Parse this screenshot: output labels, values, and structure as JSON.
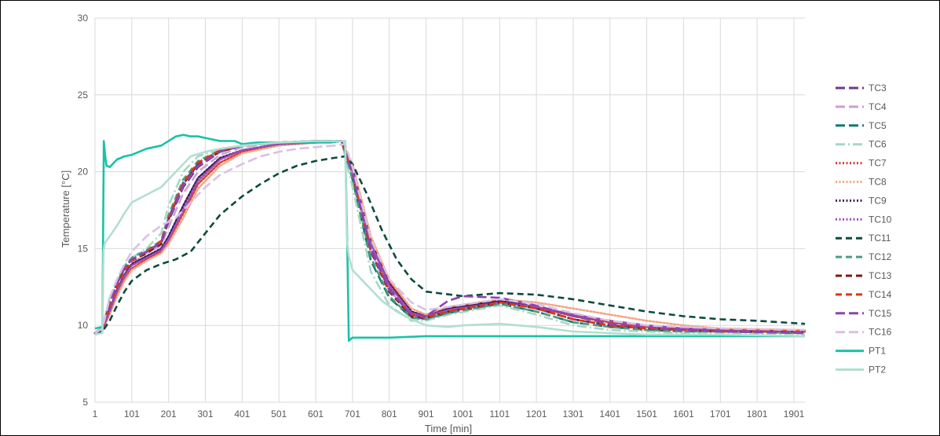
{
  "chart_data": {
    "type": "line",
    "xlabel": "Time [min]",
    "ylabel": "Temperature [°C]",
    "xlim": [
      1,
      1931
    ],
    "ylim": [
      5,
      30
    ],
    "xticks": [
      1,
      101,
      201,
      301,
      401,
      501,
      601,
      701,
      801,
      901,
      1001,
      1101,
      1201,
      1301,
      1401,
      1501,
      1601,
      1701,
      1801,
      1901
    ],
    "yticks": [
      5,
      10,
      15,
      20,
      25,
      30
    ],
    "grid": "vertical and horizontal",
    "legend": "right",
    "series": [
      {
        "name": "TC3",
        "color": "#6b3a8c",
        "style": "long-dash",
        "x": [
          1,
          21,
          41,
          61,
          81,
          101,
          141,
          181,
          201,
          241,
          281,
          341,
          401,
          501,
          601,
          671,
          701,
          751,
          801,
          861,
          901,
          961,
          1101,
          1201,
          1301,
          1401,
          1501,
          1601,
          1701,
          1931
        ],
        "y": [
          9.5,
          9.8,
          11.5,
          12.8,
          13.8,
          14.3,
          14.8,
          15.3,
          16.8,
          19.0,
          20.3,
          21.3,
          21.7,
          21.9,
          22.0,
          22.0,
          20.0,
          15.0,
          12.4,
          10.6,
          10.4,
          10.9,
          11.6,
          11.1,
          10.4,
          10.0,
          9.8,
          9.7,
          9.6,
          9.6
        ]
      },
      {
        "name": "TC4",
        "color": "#c9a0d6",
        "style": "long-dash",
        "x": [
          1,
          21,
          41,
          61,
          81,
          101,
          141,
          181,
          201,
          241,
          281,
          341,
          401,
          501,
          601,
          671,
          701,
          751,
          801,
          861,
          901,
          961,
          1101,
          1201,
          1301,
          1401,
          1501,
          1601,
          1701,
          1931
        ],
        "y": [
          9.5,
          9.8,
          11.0,
          12.3,
          13.3,
          14.0,
          14.7,
          15.2,
          16.4,
          18.6,
          20.0,
          21.1,
          21.6,
          21.9,
          22.0,
          22.0,
          19.8,
          14.8,
          12.3,
          10.7,
          10.5,
          11.0,
          11.5,
          11.2,
          10.6,
          10.2,
          9.9,
          9.8,
          9.7,
          9.6
        ]
      },
      {
        "name": "TC5",
        "color": "#0f7b6c",
        "style": "long-dash",
        "x": [
          1,
          21,
          41,
          61,
          81,
          101,
          141,
          181,
          201,
          241,
          281,
          341,
          401,
          501,
          601,
          671,
          701,
          751,
          801,
          861,
          901,
          961,
          1101,
          1201,
          1301,
          1401,
          1501,
          1601,
          1701,
          1931
        ],
        "y": [
          9.5,
          9.8,
          11.4,
          12.7,
          13.7,
          14.3,
          14.8,
          15.4,
          17.0,
          19.3,
          20.5,
          21.4,
          21.7,
          21.9,
          22.0,
          22.0,
          19.5,
          14.2,
          11.8,
          10.5,
          10.4,
          10.8,
          11.4,
          10.9,
          10.2,
          9.9,
          9.7,
          9.6,
          9.6,
          9.5
        ]
      },
      {
        "name": "TC6",
        "color": "#a8d5c4",
        "style": "dash-dot",
        "x": [
          1,
          21,
          41,
          61,
          81,
          101,
          141,
          181,
          201,
          241,
          281,
          341,
          401,
          501,
          601,
          671,
          701,
          751,
          801,
          861,
          901,
          961,
          1101,
          1201,
          1301,
          1401,
          1501,
          1601,
          1701,
          1931
        ],
        "y": [
          9.5,
          9.9,
          11.8,
          13.0,
          13.9,
          14.4,
          15.0,
          16.0,
          17.8,
          20.0,
          21.0,
          21.5,
          21.7,
          21.9,
          22.0,
          22.0,
          19.0,
          13.5,
          11.3,
          10.3,
          10.3,
          10.7,
          11.3,
          10.7,
          10.0,
          9.7,
          9.6,
          9.5,
          9.5,
          9.4
        ]
      },
      {
        "name": "TC7",
        "color": "#d93a2b",
        "style": "dotted",
        "x": [
          1,
          21,
          41,
          61,
          81,
          101,
          141,
          181,
          201,
          241,
          281,
          341,
          401,
          501,
          601,
          671,
          701,
          751,
          801,
          861,
          901,
          961,
          1101,
          1201,
          1301,
          1401,
          1501,
          1601,
          1701,
          1931
        ],
        "y": [
          9.5,
          9.7,
          10.8,
          12.0,
          13.0,
          13.7,
          14.3,
          14.8,
          15.5,
          17.3,
          19.2,
          20.6,
          21.3,
          21.8,
          21.9,
          22.0,
          20.3,
          15.5,
          12.8,
          10.9,
          10.6,
          11.1,
          11.6,
          11.2,
          10.6,
          10.2,
          9.9,
          9.8,
          9.7,
          9.6
        ]
      },
      {
        "name": "TC8",
        "color": "#f4a582",
        "style": "dotted",
        "x": [
          1,
          21,
          41,
          61,
          81,
          101,
          141,
          181,
          201,
          241,
          281,
          341,
          401,
          501,
          601,
          671,
          701,
          751,
          801,
          861,
          901,
          961,
          1101,
          1201,
          1301,
          1401,
          1501,
          1601,
          1701,
          1931
        ],
        "y": [
          9.5,
          9.7,
          10.7,
          11.9,
          12.9,
          13.6,
          14.2,
          14.7,
          15.3,
          17.0,
          18.9,
          20.4,
          21.2,
          21.7,
          21.9,
          22.0,
          20.5,
          15.8,
          13.0,
          11.1,
          10.7,
          11.2,
          11.7,
          11.5,
          11.1,
          10.7,
          10.3,
          10.0,
          9.8,
          9.7
        ]
      },
      {
        "name": "TC9",
        "color": "#3d1c5c",
        "style": "dotted",
        "x": [
          1,
          21,
          41,
          61,
          81,
          101,
          141,
          181,
          201,
          241,
          281,
          341,
          401,
          501,
          601,
          671,
          701,
          751,
          801,
          861,
          901,
          961,
          1101,
          1201,
          1301,
          1401,
          1501,
          1601,
          1701,
          1931
        ],
        "y": [
          9.5,
          9.7,
          11.0,
          12.3,
          13.3,
          14.0,
          14.5,
          15.0,
          15.8,
          17.8,
          19.6,
          20.9,
          21.4,
          21.8,
          21.9,
          22.0,
          20.2,
          15.4,
          12.7,
          10.9,
          10.6,
          11.1,
          11.6,
          11.2,
          10.7,
          10.3,
          10.0,
          9.8,
          9.7,
          9.6
        ]
      },
      {
        "name": "TC10",
        "color": "#9b4fb8",
        "style": "dotted",
        "x": [
          1,
          21,
          41,
          61,
          81,
          101,
          141,
          181,
          201,
          241,
          281,
          341,
          401,
          501,
          601,
          671,
          701,
          751,
          801,
          861,
          901,
          961,
          1101,
          1201,
          1301,
          1401,
          1501,
          1601,
          1701,
          1931
        ],
        "y": [
          9.5,
          9.7,
          10.9,
          12.2,
          13.2,
          13.9,
          14.4,
          14.9,
          15.6,
          17.5,
          19.4,
          20.8,
          21.4,
          21.8,
          21.9,
          22.0,
          20.1,
          15.3,
          12.6,
          10.8,
          10.6,
          11.0,
          11.5,
          11.2,
          10.7,
          10.3,
          10.0,
          9.8,
          9.7,
          9.6
        ]
      },
      {
        "name": "TC11",
        "color": "#0d4a3e",
        "style": "dashed",
        "x": [
          1,
          21,
          41,
          61,
          81,
          101,
          141,
          181,
          221,
          261,
          301,
          341,
          401,
          451,
          501,
          551,
          601,
          651,
          681,
          701,
          741,
          781,
          821,
          861,
          901,
          1001,
          1101,
          1201,
          1301,
          1401,
          1501,
          1601,
          1701,
          1801,
          1931
        ],
        "y": [
          9.5,
          9.6,
          10.3,
          11.3,
          12.2,
          12.9,
          13.6,
          14.0,
          14.3,
          14.8,
          16.0,
          17.2,
          18.4,
          19.2,
          19.9,
          20.4,
          20.7,
          20.9,
          21.0,
          20.5,
          18.5,
          16.2,
          14.3,
          13.0,
          12.2,
          11.9,
          12.1,
          12.0,
          11.7,
          11.3,
          10.9,
          10.6,
          10.4,
          10.3,
          10.1
        ]
      },
      {
        "name": "TC12",
        "color": "#4e9c82",
        "style": "dashed",
        "x": [
          1,
          21,
          41,
          61,
          81,
          101,
          141,
          181,
          201,
          241,
          281,
          341,
          401,
          501,
          601,
          671,
          701,
          751,
          801,
          861,
          901,
          961,
          1101,
          1201,
          1301,
          1401,
          1501,
          1601,
          1701,
          1931
        ],
        "y": [
          9.5,
          9.8,
          11.5,
          12.8,
          13.8,
          14.4,
          14.9,
          15.5,
          17.2,
          19.5,
          20.7,
          21.4,
          21.7,
          21.9,
          22.0,
          22.0,
          19.6,
          14.4,
          11.9,
          10.5,
          10.4,
          10.8,
          11.4,
          10.9,
          10.2,
          9.9,
          9.7,
          9.6,
          9.6,
          9.5
        ]
      },
      {
        "name": "TC13",
        "color": "#7a1a10",
        "style": "dashed",
        "x": [
          1,
          21,
          41,
          61,
          81,
          101,
          141,
          181,
          201,
          241,
          281,
          341,
          401,
          501,
          601,
          671,
          701,
          751,
          801,
          861,
          901,
          961,
          1101,
          1201,
          1301,
          1401,
          1501,
          1601,
          1701,
          1931
        ],
        "y": [
          9.5,
          9.8,
          11.3,
          12.6,
          13.6,
          14.2,
          14.7,
          15.3,
          16.9,
          19.2,
          20.5,
          21.3,
          21.7,
          21.9,
          22.0,
          22.0,
          19.9,
          14.8,
          12.2,
          10.6,
          10.5,
          10.9,
          11.5,
          11.1,
          10.4,
          10.0,
          9.8,
          9.7,
          9.6,
          9.6
        ]
      },
      {
        "name": "TC14",
        "color": "#d9381e",
        "style": "dashed",
        "x": [
          1,
          21,
          41,
          61,
          81,
          101,
          141,
          181,
          201,
          241,
          281,
          341,
          401,
          501,
          601,
          671,
          701,
          751,
          801,
          861,
          901,
          961,
          1101,
          1201,
          1301,
          1401,
          1501,
          1601,
          1701,
          1931
        ],
        "y": [
          9.5,
          9.8,
          11.2,
          12.5,
          13.5,
          14.2,
          14.8,
          15.5,
          17.0,
          19.3,
          20.6,
          21.4,
          21.7,
          21.9,
          22.0,
          22.0,
          19.9,
          14.9,
          12.3,
          10.7,
          10.5,
          10.9,
          11.5,
          11.1,
          10.4,
          10.0,
          9.8,
          9.7,
          9.6,
          9.6
        ]
      },
      {
        "name": "TC15",
        "color": "#8e44ad",
        "style": "long-dash",
        "x": [
          1,
          21,
          41,
          61,
          81,
          101,
          141,
          181,
          201,
          241,
          281,
          341,
          401,
          501,
          601,
          671,
          701,
          751,
          801,
          861,
          901,
          961,
          1001,
          1101,
          1201,
          1301,
          1401,
          1501,
          1601,
          1701,
          1931
        ],
        "y": [
          9.5,
          9.8,
          11.4,
          12.7,
          13.7,
          14.3,
          14.8,
          15.4,
          16.9,
          19.1,
          20.4,
          21.3,
          21.7,
          21.9,
          22.0,
          22.0,
          19.9,
          14.9,
          12.3,
          10.7,
          10.6,
          11.6,
          11.9,
          11.8,
          11.3,
          10.6,
          10.1,
          9.9,
          9.7,
          9.6,
          9.5
        ]
      },
      {
        "name": "TC16",
        "color": "#dcbfe5",
        "style": "long-dash",
        "x": [
          1,
          21,
          41,
          61,
          81,
          101,
          141,
          181,
          221,
          261,
          301,
          341,
          401,
          451,
          501,
          551,
          601,
          651,
          681,
          701,
          751,
          801,
          861,
          901,
          961,
          1101,
          1201,
          1301,
          1401,
          1501,
          1601,
          1701,
          1931
        ],
        "y": [
          9.5,
          9.8,
          11.8,
          13.0,
          14.0,
          14.8,
          15.8,
          16.5,
          17.0,
          18.0,
          19.0,
          19.8,
          20.5,
          21.0,
          21.3,
          21.5,
          21.6,
          21.7,
          21.8,
          20.3,
          15.6,
          13.0,
          11.5,
          11.0,
          11.2,
          11.7,
          11.4,
          10.8,
          10.3,
          10.0,
          9.9,
          9.8,
          9.7
        ]
      },
      {
        "name": "PT1",
        "color": "#19c2a8",
        "style": "solid",
        "x": [
          1,
          21,
          25,
          28,
          32,
          41,
          61,
          81,
          101,
          141,
          181,
          221,
          241,
          261,
          281,
          301,
          341,
          381,
          401,
          441,
          481,
          521,
          561,
          601,
          641,
          671,
          681,
          686,
          691,
          701,
          801,
          901,
          1101,
          1301,
          1501,
          1701,
          1931
        ],
        "y": [
          9.8,
          9.9,
          22.0,
          21.2,
          20.4,
          20.3,
          20.8,
          21.0,
          21.1,
          21.5,
          21.7,
          22.3,
          22.4,
          22.3,
          22.3,
          22.2,
          22.0,
          22.0,
          21.8,
          21.9,
          21.9,
          21.9,
          21.9,
          21.9,
          21.9,
          22.0,
          22.0,
          16.5,
          9.0,
          9.2,
          9.2,
          9.3,
          9.3,
          9.3,
          9.3,
          9.3,
          9.3
        ]
      },
      {
        "name": "PT2",
        "color": "#b2dfd0",
        "style": "solid",
        "x": [
          1,
          21,
          24,
          27,
          32,
          41,
          61,
          81,
          101,
          141,
          181,
          221,
          261,
          301,
          341,
          401,
          501,
          601,
          671,
          681,
          686,
          691,
          701,
          741,
          781,
          821,
          861,
          901,
          961,
          1001,
          1101,
          1201,
          1301,
          1401,
          1501,
          1701,
          1931
        ],
        "y": [
          9.4,
          9.5,
          14.8,
          15.3,
          15.5,
          15.8,
          16.5,
          17.3,
          18.0,
          18.5,
          19.0,
          20.0,
          21.0,
          21.3,
          21.5,
          21.7,
          21.9,
          22.0,
          22.0,
          22.0,
          15.5,
          14.5,
          13.6,
          12.6,
          11.6,
          10.9,
          10.4,
          10.0,
          9.9,
          10.0,
          10.1,
          9.9,
          9.6,
          9.5,
          9.4,
          9.4,
          9.3
        ]
      }
    ]
  }
}
